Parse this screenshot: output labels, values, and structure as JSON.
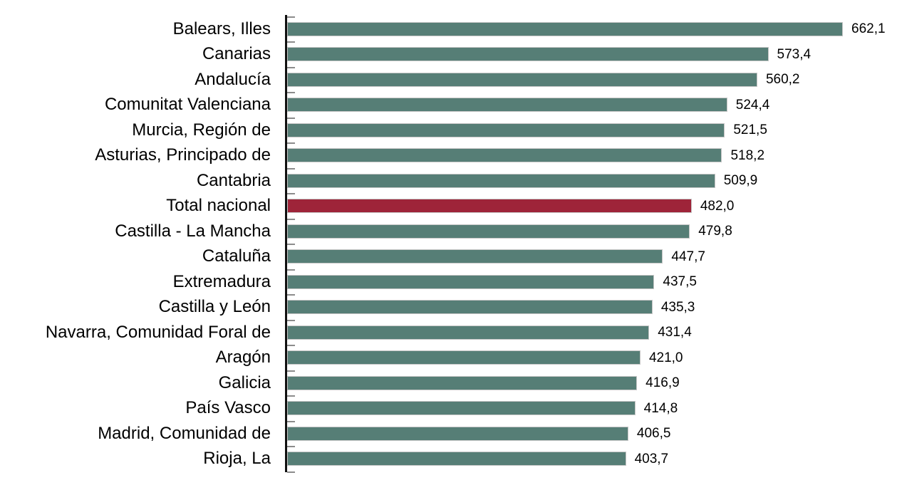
{
  "chart_data": {
    "type": "bar",
    "orientation": "horizontal",
    "title": "",
    "xlabel": "",
    "ylabel": "",
    "grid": false,
    "legend": "none",
    "decimal_separator": ",",
    "categories": [
      "Balears, Illes",
      "Canarias",
      "Andalucía",
      "Comunitat Valenciana",
      "Murcia, Región de",
      "Asturias, Principado de",
      "Cantabria",
      "Total nacional",
      "Castilla - La Mancha",
      "Cataluña",
      "Extremadura",
      "Castilla y León",
      "Navarra, Comunidad Foral de",
      "Aragón",
      "Galicia",
      "País Vasco",
      "Madrid, Comunidad de",
      "Rioja, La"
    ],
    "values": [
      662.1,
      573.4,
      560.2,
      524.4,
      521.5,
      518.2,
      509.9,
      482.0,
      479.8,
      447.7,
      437.5,
      435.3,
      431.4,
      421.0,
      416.9,
      414.8,
      406.5,
      403.7
    ],
    "value_labels": [
      "662,1",
      "573,4",
      "560,2",
      "524,4",
      "521,5",
      "518,2",
      "509,9",
      "482,0",
      "479,8",
      "447,7",
      "437,5",
      "435,3",
      "431,4",
      "421,0",
      "416,9",
      "414,8",
      "406,5",
      "403,7"
    ],
    "highlight_index": 7,
    "highlight_category": "Total nacional",
    "colors": {
      "bar": "#567E76",
      "highlight_bar": "#9E2439",
      "bar_outline": "#C6C6C6",
      "axis": "#111111",
      "tick": "#8C8C8C",
      "text": "#000000",
      "background": "#FFFFFF"
    }
  }
}
